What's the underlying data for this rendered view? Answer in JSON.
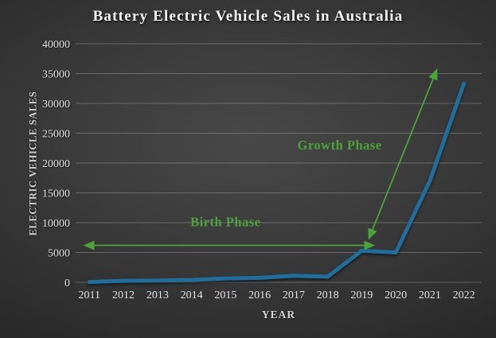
{
  "title": "Battery Electric Vehicle Sales in Australia",
  "chart_data": {
    "type": "line",
    "title": "Battery Electric Vehicle Sales in Australia",
    "xlabel": "YEAR",
    "ylabel": "ELECTRIC VEHICLE SALES",
    "categories": [
      "2011",
      "2012",
      "2013",
      "2014",
      "2015",
      "2016",
      "2017",
      "2018",
      "2019",
      "2020",
      "2021",
      "2022"
    ],
    "series": [
      {
        "name": "Battery electric vehicle sales",
        "values": [
          50,
          250,
          300,
          400,
          650,
          750,
          1100,
          950,
          5300,
          5000,
          17000,
          33300
        ]
      }
    ],
    "ylim": [
      0,
      40000
    ],
    "yticks": [
      0,
      5000,
      10000,
      15000,
      20000,
      25000,
      30000,
      35000,
      40000
    ],
    "grid": "horizontal",
    "legend": "none",
    "line_color": "#1f6f9e",
    "annotation_color": "#4ba43a",
    "annotations": [
      {
        "type": "double-arrow",
        "label": "Birth Phase",
        "x1": 2011.1,
        "y1": 6200,
        "x2": 2019.35,
        "y2": 6200,
        "label_x": 2015.0,
        "label_y": 9400
      },
      {
        "type": "double-arrow",
        "label": "Growth Phase",
        "x1": 2019.3,
        "y1": 8600,
        "x2": 2021.2,
        "y2": 35600,
        "label_x": 2018.35,
        "label_y": 22300
      }
    ]
  }
}
